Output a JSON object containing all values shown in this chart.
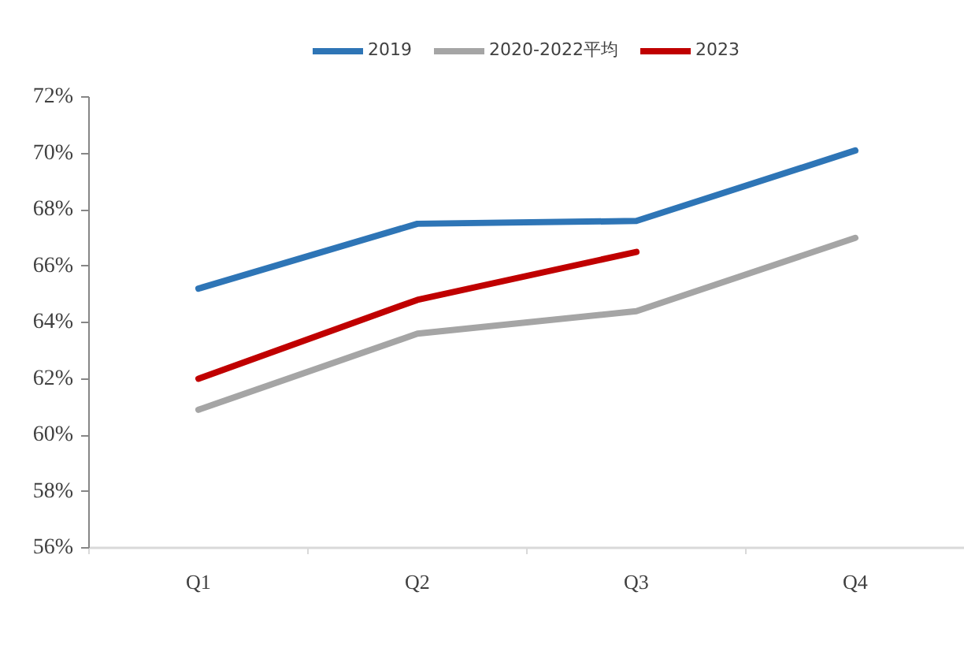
{
  "chart_data": {
    "type": "line",
    "categories": [
      "Q1",
      "Q2",
      "Q3",
      "Q4"
    ],
    "series": [
      {
        "name": "2019",
        "color": "#2e75b6",
        "values": [
          65.2,
          67.5,
          67.6,
          70.1
        ]
      },
      {
        "name": "2020-2022平均",
        "color": "#a5a5a5",
        "values": [
          60.9,
          63.6,
          64.4,
          67.0
        ]
      },
      {
        "name": "2023",
        "color": "#c00000",
        "values": [
          62.0,
          64.8,
          66.5,
          null
        ]
      }
    ],
    "ylim": [
      56,
      72
    ],
    "yticks": [
      {
        "value": 56,
        "label": "56%"
      },
      {
        "value": 58,
        "label": "58%"
      },
      {
        "value": 60,
        "label": "60%"
      },
      {
        "value": 62,
        "label": "62%"
      },
      {
        "value": 64,
        "label": "64%"
      },
      {
        "value": 66,
        "label": "66%"
      },
      {
        "value": 68,
        "label": "68%"
      },
      {
        "value": 70,
        "label": "70%"
      },
      {
        "value": 72,
        "label": "72%"
      }
    ],
    "grid": false,
    "legend": "top",
    "marker": "none",
    "line_style": "solid"
  }
}
